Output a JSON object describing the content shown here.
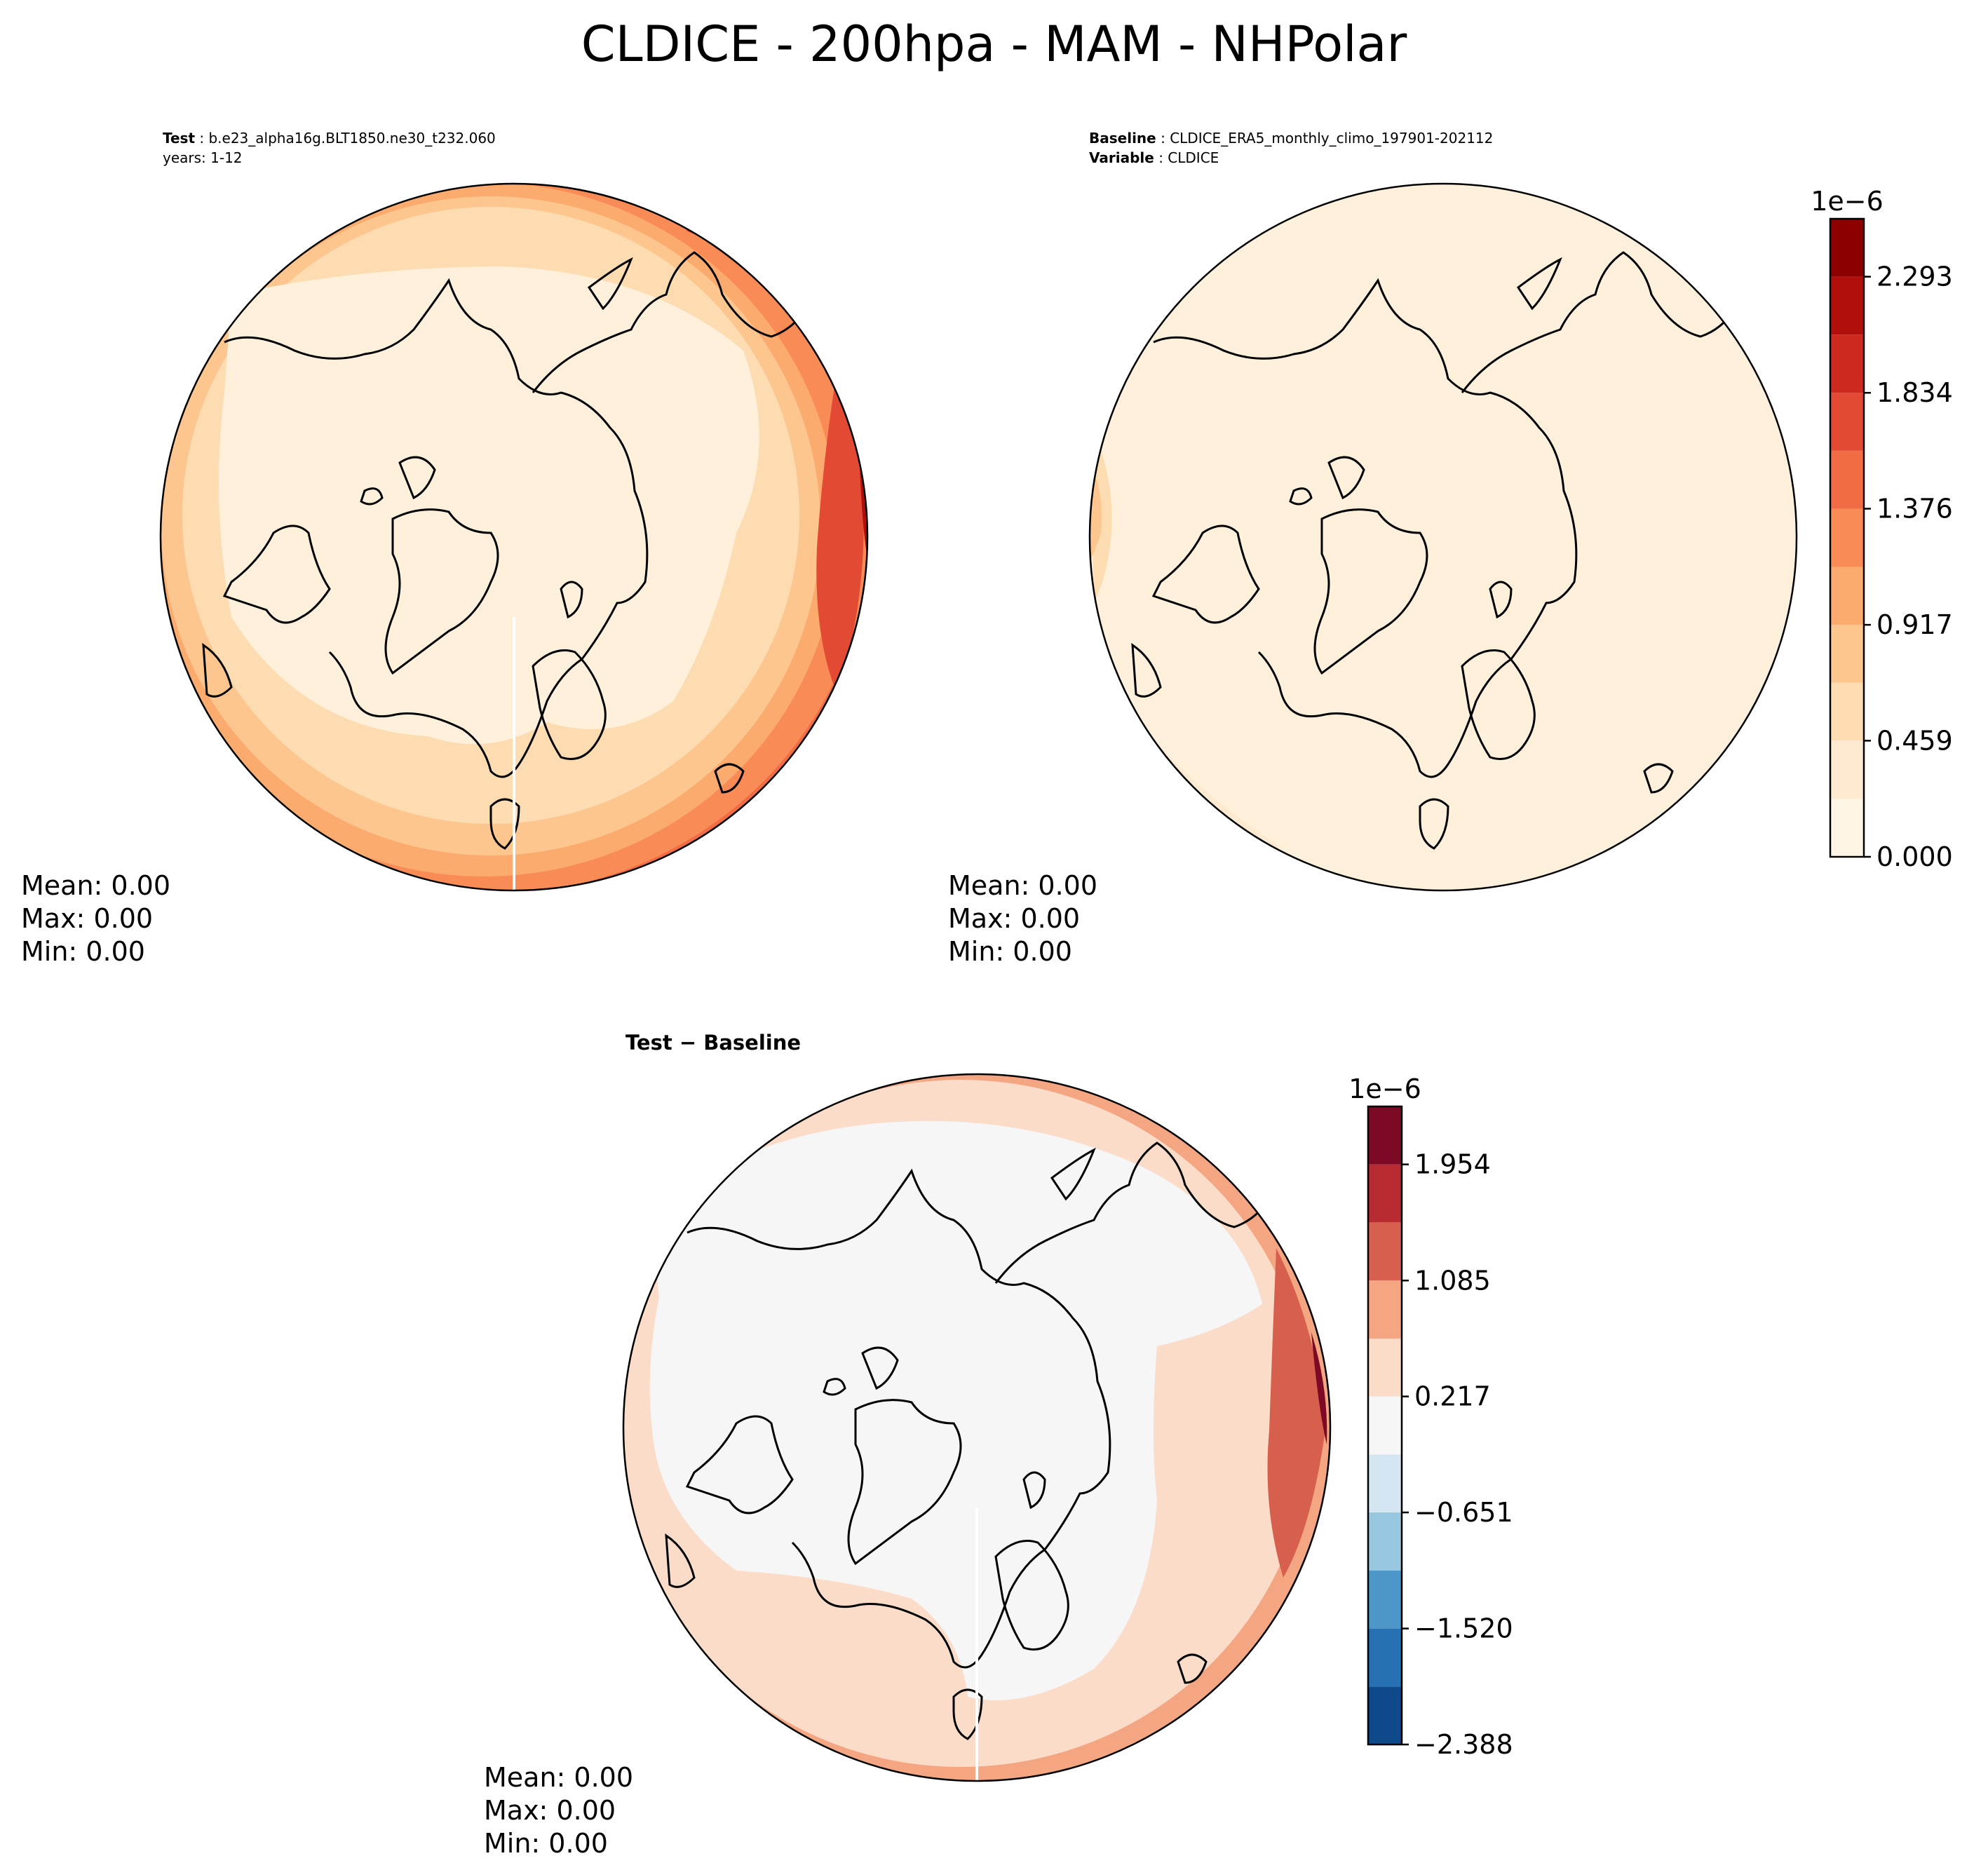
{
  "title": "CLDICE - 200hpa - MAM - NHPolar",
  "panels": [
    {
      "id": "test",
      "meta": [
        {
          "label": "Test",
          "value": "b.e23_alpha16g.BLT1850.ne30_t232.060"
        },
        {
          "label": "",
          "value": "years: 1-12"
        }
      ],
      "stats": {
        "mean": "Mean:  0.00",
        "max": "Max:  0.00",
        "min": "Min:  0.00"
      }
    },
    {
      "id": "baseline",
      "meta": [
        {
          "label": "Baseline",
          "value": "CLDICE_ERA5_monthly_climo_197901-202112"
        },
        {
          "label": "Variable",
          "value": "CLDICE"
        }
      ],
      "stats": {
        "mean": "Mean:  0.00",
        "max": "Max:  0.00",
        "min": "Min:  0.00"
      }
    },
    {
      "id": "difference",
      "title": "Test − Baseline",
      "stats": {
        "mean": "Mean:  0.00",
        "max": "Max:  0.00",
        "min": "Min:  0.00"
      }
    }
  ],
  "chart_data": [
    {
      "type": "heatmap",
      "projection": "north-polar-stereographic",
      "title": "Test",
      "colormap": "OrRd",
      "colorbar": {
        "exponent_label": "1e−6",
        "ticks": [
          0.0,
          0.459,
          0.917,
          1.376,
          1.834,
          2.293
        ],
        "tick_labels": [
          "0.000",
          "0.459",
          "0.917",
          "1.376",
          "1.834",
          "2.293"
        ],
        "levels": [
          0.0,
          0.229,
          0.459,
          0.688,
          0.917,
          1.146,
          1.376,
          1.605,
          1.834,
          2.064,
          2.293,
          2.522
        ],
        "colors": [
          "#fff5e6",
          "#feead0",
          "#fddcb1",
          "#fdc68e",
          "#fcab6f",
          "#f98c56",
          "#f16c45",
          "#e34a33",
          "#cc2a1f",
          "#b10f0c",
          "#8c0000"
        ]
      },
      "field_description_levels": {
        "center": 0.05,
        "mid_ring": 0.4,
        "outer_ring": 0.85,
        "edge_max_east": 2.4
      }
    },
    {
      "type": "heatmap",
      "projection": "north-polar-stereographic",
      "title": "Baseline",
      "colormap": "OrRd",
      "shared_colorbar": "test",
      "field_description_levels": {
        "center": 0.05,
        "edge": 0.25,
        "edge_max_west": 0.6
      }
    },
    {
      "type": "heatmap",
      "projection": "north-polar-stereographic",
      "title": "Test − Baseline",
      "colormap": "RdBu_r",
      "colorbar": {
        "exponent_label": "1e−6",
        "ticks": [
          -2.388,
          -1.52,
          -0.651,
          0.217,
          1.085,
          1.954
        ],
        "tick_labels": [
          "−2.388",
          "−1.520",
          "−0.651",
          "0.217",
          "1.085",
          "1.954"
        ],
        "levels": [
          -2.388,
          -1.954,
          -1.52,
          -1.085,
          -0.651,
          -0.217,
          0.217,
          0.651,
          1.085,
          1.52,
          1.954,
          2.388
        ],
        "colors": [
          "#0e4a8a",
          "#2670b4",
          "#4d97c8",
          "#98c7e0",
          "#d4e6f1",
          "#f6f6f6",
          "#fbdcc9",
          "#f4a582",
          "#d6604d",
          "#b82b33",
          "#7d0a25"
        ]
      },
      "field_description_levels": {
        "center": 0.0,
        "ring": 0.4,
        "outer": 0.8,
        "edge_max_east": 2.2
      }
    }
  ]
}
